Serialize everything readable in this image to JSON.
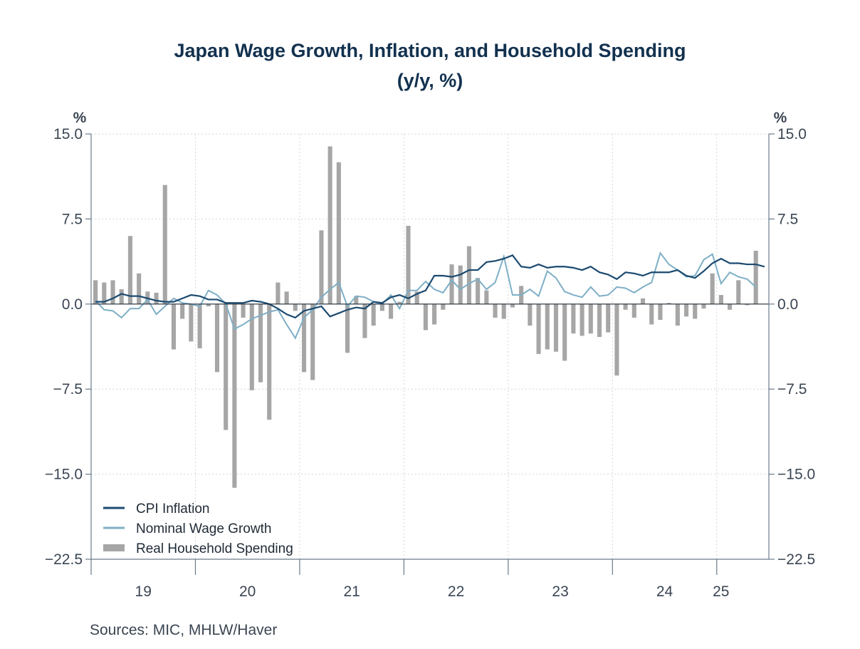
{
  "title_line1": "Japan Wage Growth, Inflation, and Household Spending",
  "title_line2": "(y/y, %)",
  "source": "Sources:  MIC, MHLW/Haver",
  "colors": {
    "cpi": "#1b4a70",
    "wage": "#7eafc6",
    "spending": "#a6a6a6",
    "axis": "#6a7b8c",
    "grid": "#d2d6da",
    "text": "#3a4552"
  },
  "chart_data": {
    "type": "bar+line",
    "title": "Japan Wage Growth, Inflation, and Household Spending (y/y, %)",
    "ylabel_left": "%",
    "ylabel_right": "%",
    "ylim": [
      -22.5,
      15.0
    ],
    "y_ticks": [
      "15.0",
      "7.5",
      "0.0",
      "-7.5",
      "-15.0",
      "-22.5"
    ],
    "y_tick_values": [
      15.0,
      7.5,
      0.0,
      -7.5,
      -15.0,
      -22.5
    ],
    "x_start": "Jan 2019",
    "x_end": "Jun 2025",
    "x_ticks": [
      "19",
      "20",
      "21",
      "22",
      "23",
      "24",
      "25"
    ],
    "grid": "dotted",
    "legend_position": "bottom-left",
    "series": [
      {
        "name": "CPI Inflation",
        "type": "line",
        "values": [
          0.2,
          0.2,
          0.5,
          0.9,
          0.7,
          0.7,
          0.5,
          0.3,
          0.2,
          0.2,
          0.5,
          0.8,
          0.7,
          0.4,
          0.4,
          0.1,
          0.1,
          0.1,
          0.3,
          0.2,
          0.0,
          -0.4,
          -0.9,
          -1.2,
          -0.6,
          -0.4,
          -0.2,
          -1.1,
          -0.8,
          -0.5,
          -0.3,
          -0.4,
          0.2,
          0.1,
          0.6,
          0.8,
          0.5,
          0.9,
          1.2,
          2.5,
          2.5,
          2.4,
          2.6,
          3.0,
          3.0,
          3.7,
          3.8,
          4.0,
          4.3,
          3.3,
          3.2,
          3.5,
          3.2,
          3.3,
          3.3,
          3.2,
          3.0,
          3.3,
          2.8,
          2.6,
          2.2,
          2.8,
          2.7,
          2.5,
          2.8,
          2.8,
          2.8,
          3.0,
          2.5,
          2.3,
          2.9,
          3.6,
          4.0,
          3.6,
          3.6,
          3.5,
          3.5,
          3.3
        ]
      },
      {
        "name": "Nominal Wage Growth",
        "type": "line",
        "values": [
          0.3,
          -0.5,
          -0.6,
          -1.2,
          -0.4,
          -0.4,
          0.4,
          -0.9,
          -0.2,
          0.5,
          0.1,
          0.0,
          -0.2,
          1.2,
          0.8,
          0.0,
          -2.2,
          -1.8,
          -1.3,
          -1.0,
          -0.7,
          -0.5,
          -1.8,
          -3.0,
          -1.2,
          -0.5,
          0.6,
          1.3,
          1.9,
          -0.2,
          0.7,
          0.6,
          0.2,
          0.0,
          0.8,
          -0.4,
          1.2,
          1.2,
          2.0,
          1.3,
          1.0,
          2.1,
          1.3,
          1.8,
          2.2,
          1.3,
          1.9,
          4.2,
          0.8,
          0.8,
          1.3,
          0.7,
          2.9,
          2.3,
          1.1,
          0.8,
          0.6,
          1.5,
          0.7,
          0.8,
          1.5,
          1.4,
          1.0,
          1.5,
          1.9,
          4.5,
          3.5,
          3.0,
          2.4,
          2.5,
          3.9,
          4.4,
          1.8,
          2.8,
          2.4,
          2.2,
          1.5
        ]
      },
      {
        "name": "Real Household Spending",
        "type": "bar",
        "values": [
          2.1,
          1.9,
          2.1,
          1.3,
          6.0,
          2.7,
          1.1,
          1.0,
          10.5,
          -4.0,
          -1.3,
          -3.3,
          -3.9,
          -0.2,
          -6.0,
          -11.1,
          -16.2,
          -1.2,
          -7.6,
          -6.9,
          -10.2,
          1.9,
          1.1,
          -0.6,
          -6.0,
          -6.7,
          6.5,
          13.9,
          12.5,
          -4.3,
          0.7,
          -3.0,
          -1.9,
          -0.6,
          -1.3,
          0.2,
          6.9,
          1.1,
          -2.3,
          -1.8,
          -0.5,
          3.5,
          3.4,
          5.1,
          2.3,
          1.2,
          -1.2,
          -1.3,
          -0.3,
          1.6,
          -1.9,
          -4.4,
          -4.0,
          -4.2,
          -5.0,
          -2.6,
          -2.8,
          -2.6,
          -2.9,
          -2.5,
          -6.3,
          -0.5,
          -1.2,
          0.5,
          -1.8,
          -1.4,
          0.1,
          -1.9,
          -1.1,
          -1.3,
          -0.4,
          2.7,
          0.8,
          -0.5,
          2.1,
          -0.1,
          4.7
        ]
      }
    ]
  }
}
